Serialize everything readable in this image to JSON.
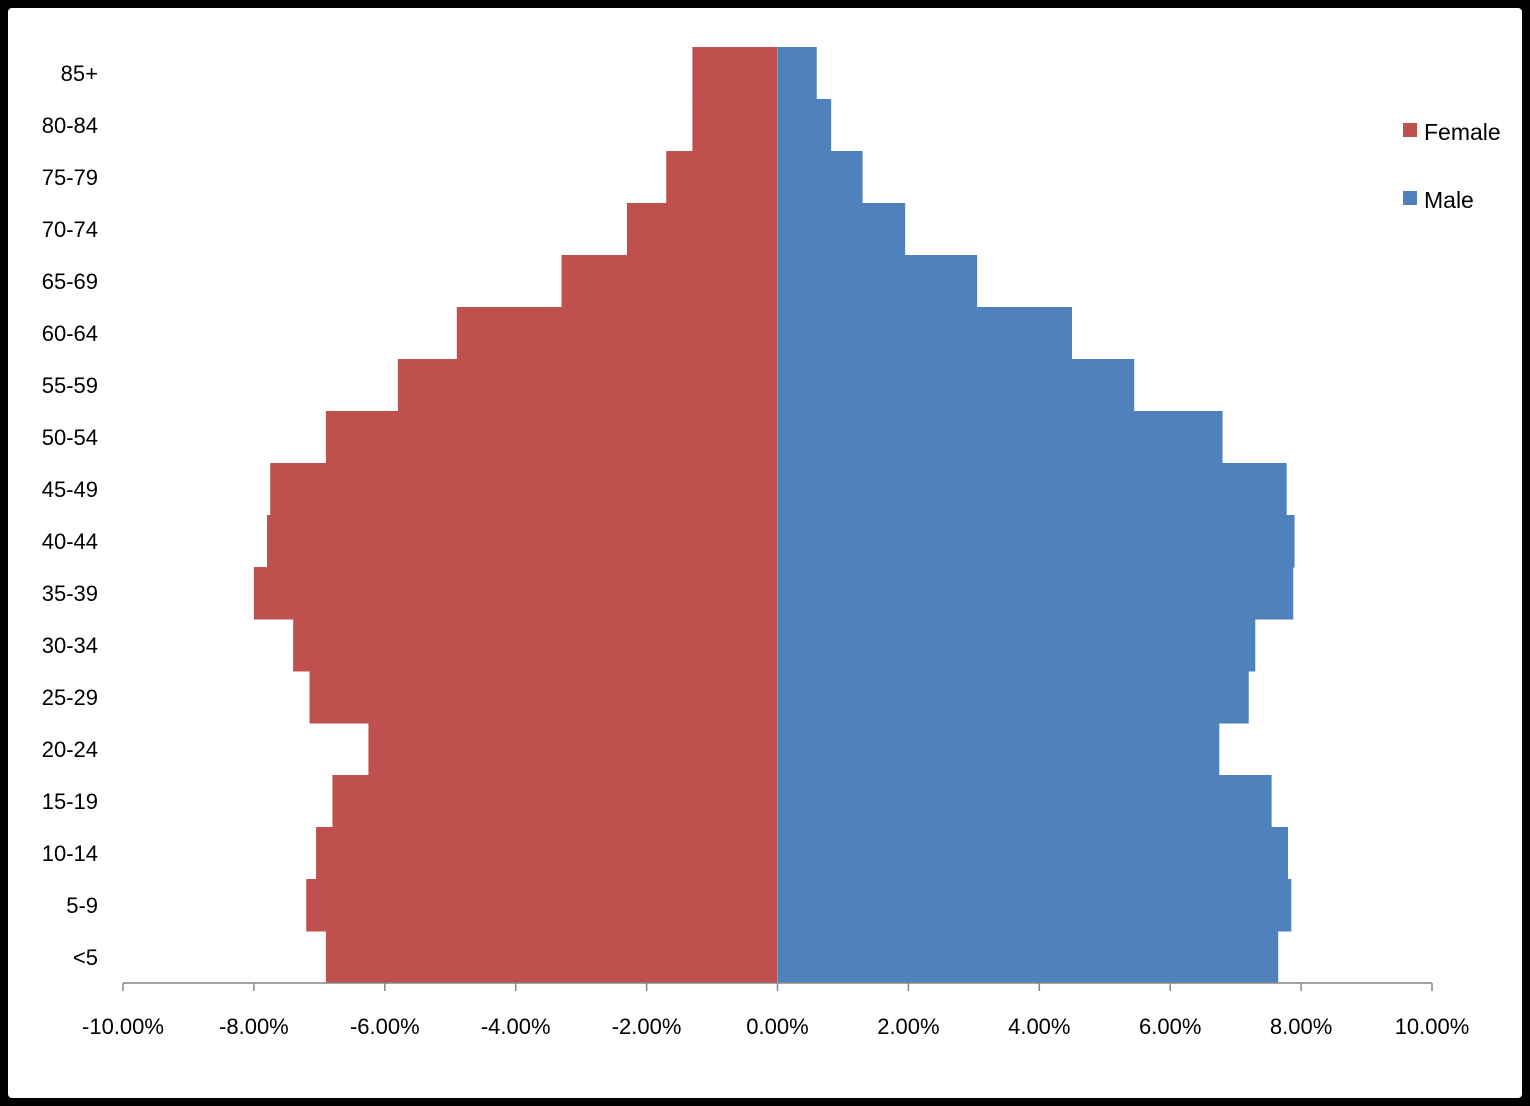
{
  "chart_data": {
    "type": "bar",
    "orientation": "horizontal",
    "stacked": "population-pyramid",
    "categories": [
      "<5",
      "5-9",
      "10-14",
      "15-19",
      "20-24",
      "25-29",
      "30-34",
      "35-39",
      "40-44",
      "45-49",
      "50-54",
      "55-59",
      "60-64",
      "65-69",
      "70-74",
      "75-79",
      "80-84",
      "85+"
    ],
    "series": [
      {
        "name": "Female",
        "color": "#C0504D",
        "values": [
          -6.9,
          -7.2,
          -7.05,
          -6.8,
          -6.25,
          -7.15,
          -7.4,
          -8.0,
          -7.8,
          -7.75,
          -6.9,
          -5.8,
          -4.9,
          -3.3,
          -2.3,
          -1.7,
          -1.3,
          -1.3
        ]
      },
      {
        "name": "Male",
        "color": "#4F81BD",
        "values": [
          7.65,
          7.85,
          7.8,
          7.55,
          6.75,
          7.2,
          7.3,
          7.88,
          7.9,
          7.78,
          6.8,
          5.45,
          4.5,
          3.05,
          1.95,
          1.3,
          0.82,
          0.6
        ]
      }
    ],
    "xlim": [
      -10,
      10
    ],
    "x_ticks": [
      "-10.00%",
      "-8.00%",
      "-6.00%",
      "-4.00%",
      "-2.00%",
      "0.00%",
      "2.00%",
      "4.00%",
      "6.00%",
      "8.00%",
      "10.00%"
    ],
    "title": "",
    "xlabel": "",
    "ylabel": "",
    "grid": false,
    "legend": "right"
  }
}
